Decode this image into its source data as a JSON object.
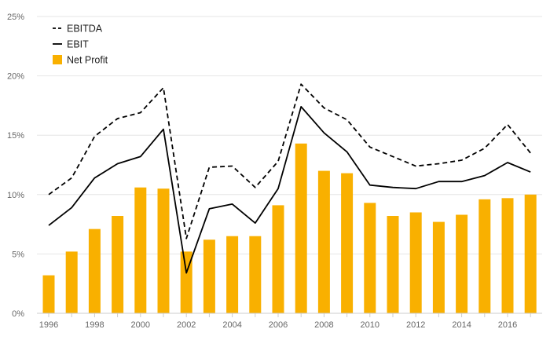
{
  "chart_data": {
    "type": "bar",
    "categories": [
      "1996",
      "1997",
      "1998",
      "1999",
      "2000",
      "2001",
      "2002",
      "2003",
      "2004",
      "2005",
      "2006",
      "2007",
      "2008",
      "2009",
      "2010",
      "2011",
      "2012",
      "2013",
      "2014",
      "2015",
      "2016",
      "2017"
    ],
    "x_tick_labels": [
      "1996",
      "1998",
      "2000",
      "2002",
      "2004",
      "2006",
      "2008",
      "2010",
      "2012",
      "2014",
      "2016"
    ],
    "y_ticks": [
      0,
      5,
      10,
      15,
      20,
      25
    ],
    "y_tick_labels": [
      "0%",
      "5%",
      "10%",
      "15%",
      "20%",
      "25%"
    ],
    "ylim": [
      0,
      25
    ],
    "grid": true,
    "legend_position": "top-left",
    "series": [
      {
        "name": "EBITDA",
        "type": "line",
        "style": "dashed",
        "color": "#000000",
        "values": [
          10.0,
          11.4,
          14.9,
          16.4,
          16.9,
          19.0,
          6.3,
          12.3,
          12.4,
          10.6,
          12.8,
          19.3,
          17.3,
          16.3,
          14.0,
          13.2,
          12.4,
          12.6,
          12.9,
          13.9,
          15.9,
          13.5
        ]
      },
      {
        "name": "EBIT",
        "type": "line",
        "style": "solid",
        "color": "#000000",
        "values": [
          7.4,
          8.9,
          11.4,
          12.6,
          13.2,
          15.5,
          3.4,
          8.8,
          9.2,
          7.6,
          10.5,
          17.4,
          15.2,
          13.6,
          10.8,
          10.6,
          10.5,
          11.1,
          11.1,
          11.6,
          12.7,
          11.9
        ]
      },
      {
        "name": "Net Profit",
        "type": "bar",
        "color": "#f9b000",
        "values": [
          3.2,
          5.2,
          7.1,
          8.2,
          10.6,
          10.5,
          5.2,
          6.2,
          6.5,
          6.5,
          9.1,
          14.3,
          12.0,
          11.8,
          9.3,
          8.2,
          8.5,
          7.7,
          8.3,
          9.6,
          9.7,
          10.0
        ]
      }
    ]
  }
}
